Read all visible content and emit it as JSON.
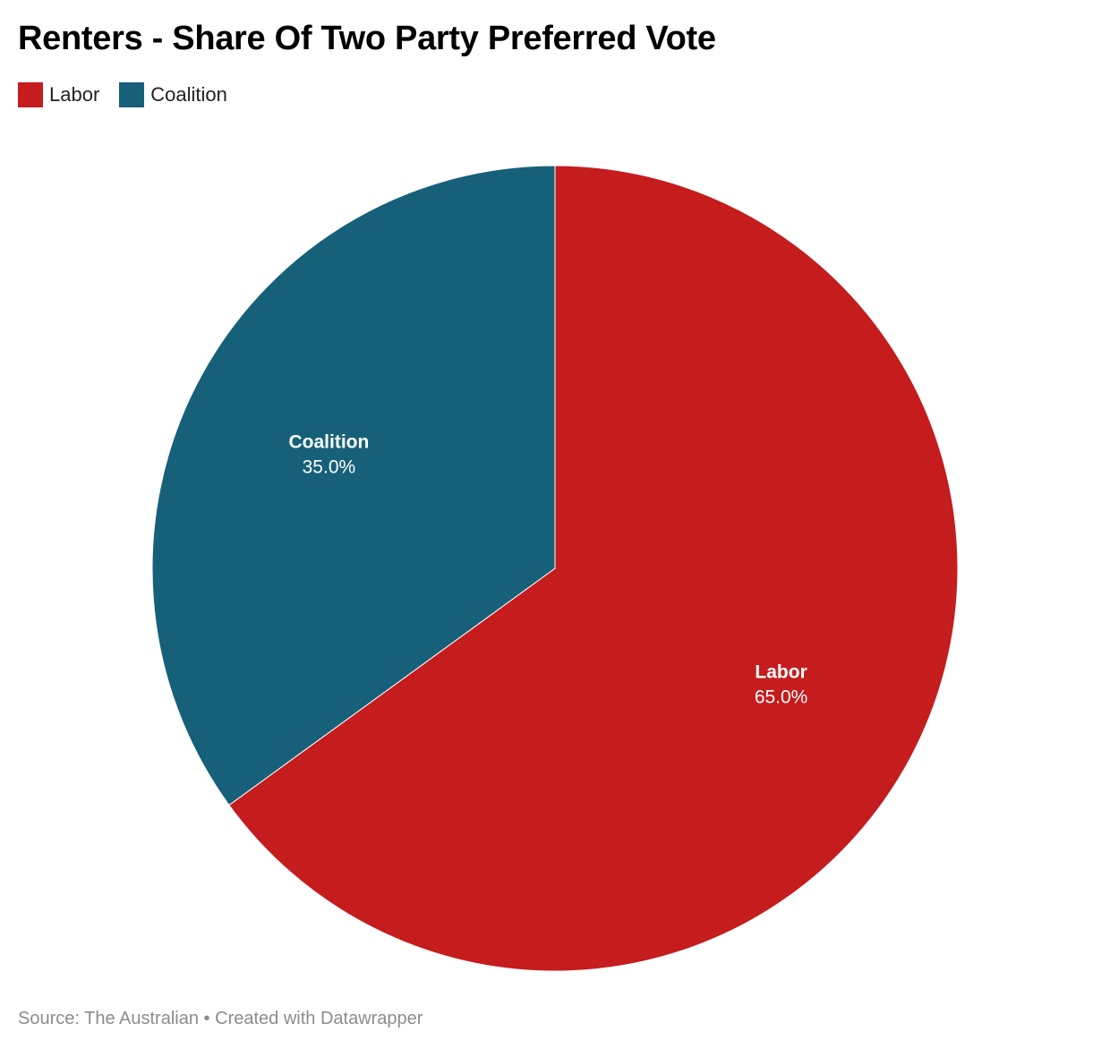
{
  "title": "Renters - Share Of Two Party Preferred Vote",
  "legend": [
    {
      "label": "Labor",
      "color": "#c51c1e"
    },
    {
      "label": "Coalition",
      "color": "#17607a"
    }
  ],
  "chart_data": {
    "type": "pie",
    "title": "Renters - Share Of Two Party Preferred Vote",
    "slices": [
      {
        "label": "Labor",
        "value": 65.0,
        "value_label": "65.0%",
        "color": "#c51c1e"
      },
      {
        "label": "Coalition",
        "value": 35.0,
        "value_label": "35.0%",
        "color": "#17607a"
      }
    ],
    "start_angle": "12 o'clock",
    "direction": "clockwise",
    "legend_position": "top-left"
  },
  "footer": {
    "source": "Source: The Australian",
    "separator": "•",
    "credit": "Created with Datawrapper"
  }
}
